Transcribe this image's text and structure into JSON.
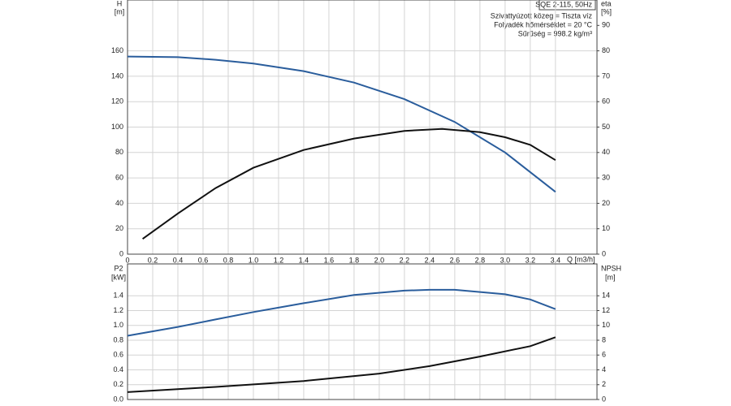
{
  "chart_data": [
    {
      "type": "line",
      "annotations": [
        "SQE 2-115, 50Hz",
        "Szivattyúzott közeg = Tiszta víz",
        "Folyadék hőmérséklet = 20 °C",
        "Sűrűség = 998.2 kg/m³"
      ],
      "y_label": "H",
      "y_unit": "[m]",
      "y2_label": "eta",
      "y2_unit": "[%]",
      "x_label": "Q [m3/h]",
      "xlim": [
        0,
        3.73
      ],
      "xticks": [
        0,
        0.2,
        0.4,
        0.6,
        0.8,
        {
          "value": 1,
          "label": "1.0"
        },
        1.2,
        1.4,
        1.6,
        1.8,
        {
          "value": 2,
          "label": "2.0"
        },
        2.2,
        2.4,
        2.6,
        2.8,
        {
          "value": 3,
          "label": "3.0"
        },
        3.2,
        3.4
      ],
      "ylim": [
        0,
        200
      ],
      "yticks": [
        0,
        20,
        40,
        60,
        80,
        100,
        120,
        140,
        160
      ],
      "y2lim": [
        0,
        100
      ],
      "y2ticks": [
        0,
        10,
        20,
        30,
        40,
        50,
        60,
        70,
        80,
        90
      ],
      "grid": true,
      "series": [
        {
          "name": "H",
          "color": "#2a5d9c",
          "x": [
            0,
            0.4,
            0.7,
            1.0,
            1.4,
            1.8,
            2.2,
            2.6,
            2.7,
            3.0,
            3.4
          ],
          "values": [
            155.5,
            155,
            153,
            150,
            144,
            135,
            122,
            104,
            98,
            80,
            49
          ]
        },
        {
          "name": "eta",
          "color": "#111111",
          "axis": "y2",
          "x": [
            0.12,
            0.4,
            0.7,
            1.0,
            1.4,
            1.8,
            2.2,
            2.5,
            2.8,
            3.0,
            3.2,
            3.4
          ],
          "values": [
            6,
            16,
            26,
            34,
            41,
            45.5,
            48.5,
            49.3,
            48,
            46,
            43,
            37
          ]
        }
      ]
    },
    {
      "type": "line",
      "y_label": "P2",
      "y_unit": "[kW]",
      "y2_label": "NPSH",
      "y2_unit": "[m]",
      "xlim": [
        0,
        3.73
      ],
      "ylim": [
        0,
        1.83
      ],
      "yticks": [
        {
          "value": 0,
          "label": "0.0"
        },
        0.2,
        0.4,
        0.6,
        0.8,
        {
          "value": 1,
          "label": "1.0"
        },
        1.2,
        1.4
      ],
      "y2lim": [
        0,
        18.3
      ],
      "y2ticks": [
        0,
        2,
        4,
        6,
        8,
        10,
        12,
        14
      ],
      "grid": true,
      "series": [
        {
          "name": "P2",
          "color": "#2a5d9c",
          "x": [
            0,
            0.4,
            0.7,
            1.0,
            1.4,
            1.8,
            2.2,
            2.4,
            2.6,
            3.0,
            3.2,
            3.4
          ],
          "values": [
            0.86,
            0.98,
            1.08,
            1.18,
            1.3,
            1.41,
            1.47,
            1.48,
            1.48,
            1.42,
            1.35,
            1.22
          ]
        },
        {
          "name": "NPSH",
          "color": "#111111",
          "axis": "y2",
          "x": [
            0,
            0.7,
            1.4,
            2.0,
            2.4,
            2.8,
            3.2,
            3.4
          ],
          "values": [
            1.0,
            1.7,
            2.5,
            3.5,
            4.5,
            5.8,
            7.2,
            8.4
          ]
        }
      ]
    }
  ]
}
